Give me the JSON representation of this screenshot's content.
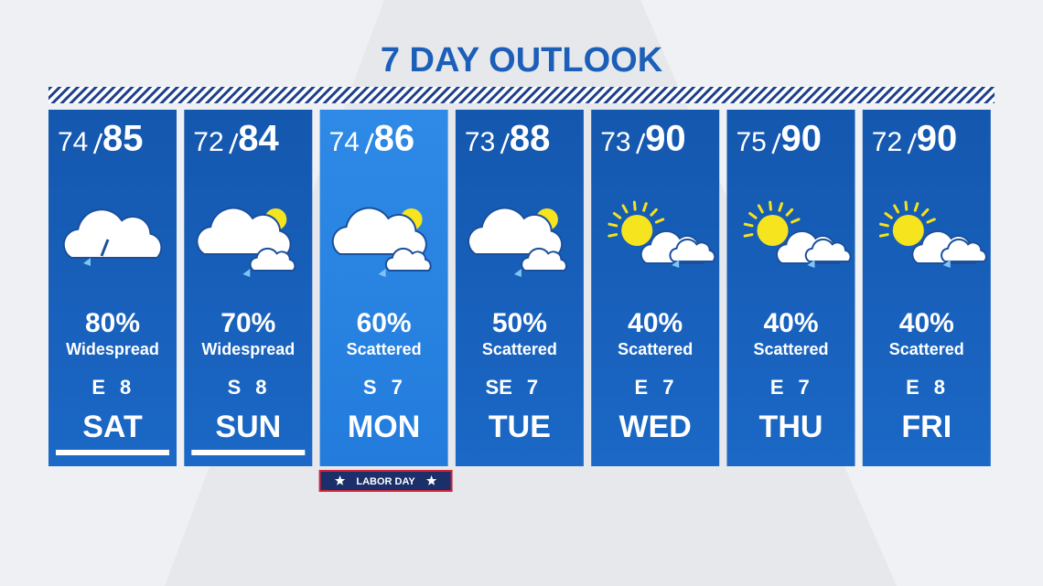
{
  "title": "7 DAY OUTLOOK",
  "holiday": {
    "label": "LABOR DAY"
  },
  "days": [
    {
      "low": 74,
      "high": 85,
      "chance": "80%",
      "coverage": "Widespread",
      "wind_dir": "E",
      "wind_speed": 8,
      "day": "SAT"
    },
    {
      "low": 72,
      "high": 84,
      "chance": "70%",
      "coverage": "Widespread",
      "wind_dir": "S",
      "wind_speed": 8,
      "day": "SUN"
    },
    {
      "low": 74,
      "high": 86,
      "chance": "60%",
      "coverage": "Scattered",
      "wind_dir": "S",
      "wind_speed": 7,
      "day": "MON"
    },
    {
      "low": 73,
      "high": 88,
      "chance": "50%",
      "coverage": "Scattered",
      "wind_dir": "SE",
      "wind_speed": 7,
      "day": "TUE"
    },
    {
      "low": 73,
      "high": 90,
      "chance": "40%",
      "coverage": "Scattered",
      "wind_dir": "E",
      "wind_speed": 7,
      "day": "WED"
    },
    {
      "low": 75,
      "high": 90,
      "chance": "40%",
      "coverage": "Scattered",
      "wind_dir": "E",
      "wind_speed": 7,
      "day": "THU"
    },
    {
      "low": 72,
      "high": 90,
      "chance": "40%",
      "coverage": "Scattered",
      "wind_dir": "E",
      "wind_speed": 8,
      "day": "FRI"
    }
  ]
}
